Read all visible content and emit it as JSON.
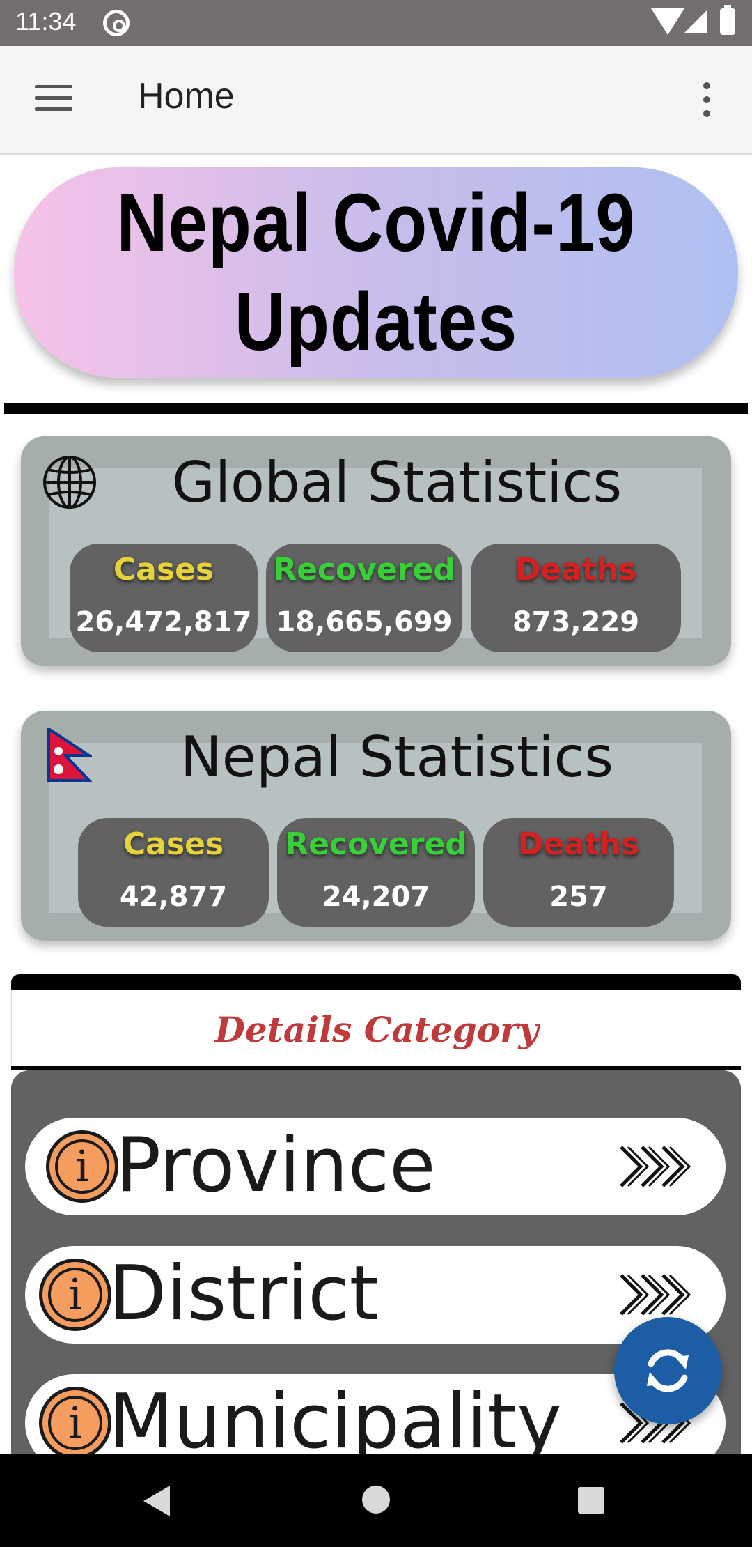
{
  "status_bar": {
    "time": "11:34"
  },
  "app_bar": {
    "title": "Home"
  },
  "banner": {
    "title": "Nepal Covid-19 Updates"
  },
  "global_stats": {
    "title": "Global Statistics",
    "cases_label": "Cases",
    "cases_value": "26,472,817",
    "recovered_label": "Recovered",
    "recovered_value": "18,665,699",
    "deaths_label": "Deaths",
    "deaths_value": "873,229"
  },
  "nepal_stats": {
    "title": "Nepal Statistics",
    "cases_label": "Cases",
    "cases_value": "42,877",
    "recovered_label": "Recovered",
    "recovered_value": "24,207",
    "deaths_label": "Deaths",
    "deaths_value": "257"
  },
  "details": {
    "title": "Details Category",
    "items": [
      {
        "label": "Province"
      },
      {
        "label": "District"
      },
      {
        "label": "Municipality"
      }
    ]
  },
  "colors": {
    "cases": "#e6d23a",
    "recovered": "#37d038",
    "deaths": "#d42020",
    "fab": "#1c5da5",
    "details_title": "#c0393b"
  },
  "icons": {
    "menu": "menu-icon",
    "more": "more-vert-icon",
    "globe": "globe-icon",
    "flag": "nepal-flag-icon",
    "info": "info-icon",
    "chevrons": "triple-chevron-right-icon",
    "refresh": "refresh-icon"
  }
}
